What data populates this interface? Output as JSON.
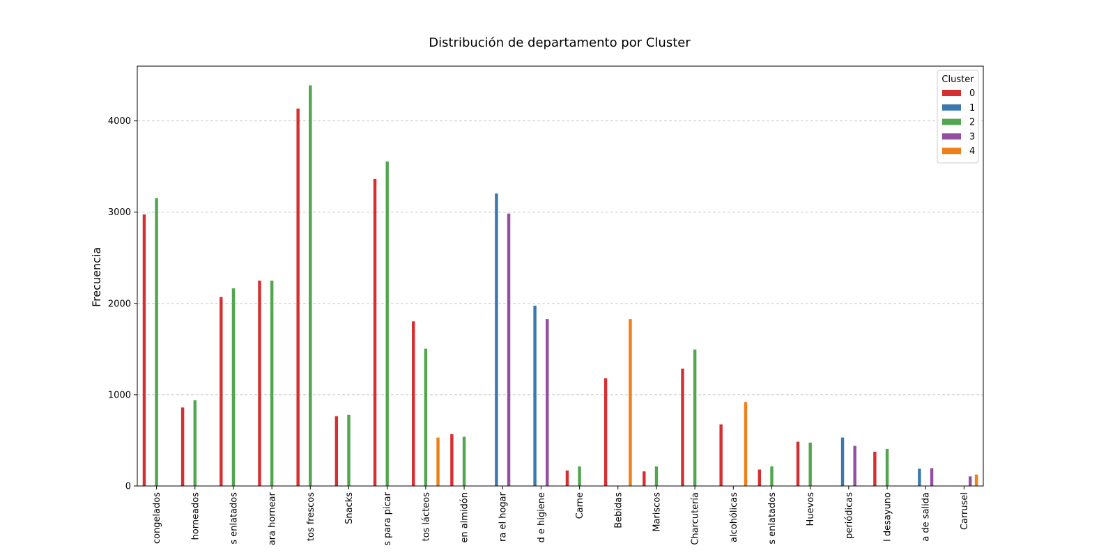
{
  "chart_data": {
    "type": "bar",
    "title": "Distribución de departamento por Cluster",
    "xlabel": "",
    "ylabel": "Frecuencia",
    "ylim": [
      0,
      4600
    ],
    "yticks": [
      0,
      1000,
      2000,
      3000,
      4000
    ],
    "grid": "y-dashed",
    "legend": {
      "title": "Cluster",
      "placement": "top-right"
    },
    "categories": [
      "congelados",
      "horneados",
      "s enlatados",
      "ara hornear",
      "tos frescos",
      "Snacks",
      "s para picar",
      "tos lácteos",
      "en almidón",
      "ra el hogar",
      "d e higiene",
      "Carne",
      "Bebidas",
      "Mariscos",
      "Charcutería",
      "alcohólicas",
      "s enlatados",
      "Huevos",
      "periódicas",
      "l desayuno",
      "a de salida",
      "Carrusel"
    ],
    "series": [
      {
        "name": "0",
        "color": "#d62f32",
        "values": [
          2975,
          860,
          2070,
          2250,
          4135,
          765,
          3365,
          1805,
          570,
          null,
          null,
          170,
          1180,
          160,
          1285,
          675,
          180,
          485,
          null,
          375,
          null,
          null
        ]
      },
      {
        "name": "1",
        "color": "#3a78ad",
        "values": [
          null,
          null,
          null,
          null,
          null,
          null,
          null,
          null,
          null,
          3205,
          1975,
          null,
          null,
          null,
          null,
          null,
          null,
          null,
          530,
          null,
          190,
          null
        ]
      },
      {
        "name": "2",
        "color": "#52a650",
        "values": [
          3155,
          940,
          2165,
          2250,
          4390,
          780,
          3555,
          1505,
          540,
          null,
          null,
          215,
          null,
          215,
          1495,
          null,
          215,
          475,
          null,
          405,
          null,
          null
        ]
      },
      {
        "name": "3",
        "color": "#9350a1",
        "values": [
          null,
          null,
          null,
          null,
          null,
          null,
          null,
          null,
          null,
          2985,
          1830,
          null,
          null,
          null,
          null,
          null,
          null,
          null,
          440,
          null,
          195,
          105
        ]
      },
      {
        "name": "4",
        "color": "#ef7f16",
        "values": [
          null,
          null,
          null,
          null,
          null,
          null,
          null,
          530,
          null,
          null,
          null,
          null,
          1830,
          null,
          null,
          920,
          null,
          null,
          null,
          null,
          null,
          125
        ]
      }
    ]
  }
}
